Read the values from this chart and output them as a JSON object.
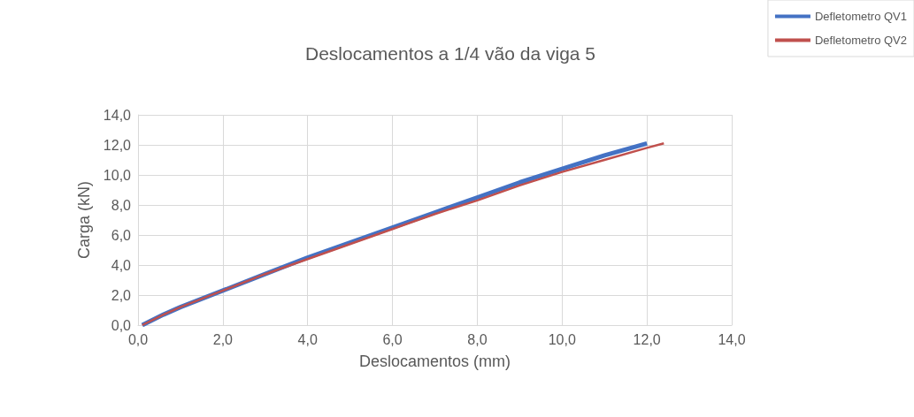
{
  "chart_data": {
    "type": "line",
    "title": "Deslocamentos a 1/4 vão da viga 5",
    "xlabel": "Deslocamentos (mm)",
    "ylabel": "Carga (kN)",
    "xlim": [
      0,
      14
    ],
    "ylim": [
      0,
      14
    ],
    "xticks": [
      {
        "value": 0,
        "label": "0,0"
      },
      {
        "value": 2,
        "label": "2,0"
      },
      {
        "value": 4,
        "label": "4,0"
      },
      {
        "value": 6,
        "label": "6,0"
      },
      {
        "value": 8,
        "label": "8,0"
      },
      {
        "value": 10,
        "label": "10,0"
      },
      {
        "value": 12,
        "label": "12,0"
      },
      {
        "value": 14,
        "label": "14,0"
      }
    ],
    "yticks": [
      {
        "value": 0,
        "label": "0,0"
      },
      {
        "value": 2,
        "label": "2,0"
      },
      {
        "value": 4,
        "label": "4,0"
      },
      {
        "value": 6,
        "label": "6,0"
      },
      {
        "value": 8,
        "label": "8,0"
      },
      {
        "value": 10,
        "label": "10,0"
      },
      {
        "value": 12,
        "label": "12,0"
      },
      {
        "value": 14,
        "label": "14,0"
      }
    ],
    "grid": true,
    "legend": "top right",
    "marker": "none",
    "line_style": "solid",
    "series": [
      {
        "name": "Defletometro QV1",
        "color": "#4472c4",
        "x": [
          0.1,
          0.6,
          1,
          2,
          3,
          4,
          5,
          6,
          7,
          8,
          9,
          10,
          11,
          12
        ],
        "values": [
          0,
          0.7,
          1.2,
          2.3,
          3.4,
          4.5,
          5.5,
          6.5,
          7.5,
          8.5,
          9.5,
          10.4,
          11.3,
          12.1
        ]
      },
      {
        "name": "Defletometro QV2",
        "color": "#c0504d",
        "x": [
          0.1,
          0.6,
          1,
          2,
          3,
          4,
          5,
          6,
          7,
          8,
          9,
          10,
          11,
          12,
          12.4
        ],
        "values": [
          0,
          0.7,
          1.2,
          2.3,
          3.4,
          4.4,
          5.4,
          6.4,
          7.4,
          8.3,
          9.3,
          10.2,
          11,
          11.8,
          12.1
        ]
      }
    ]
  }
}
